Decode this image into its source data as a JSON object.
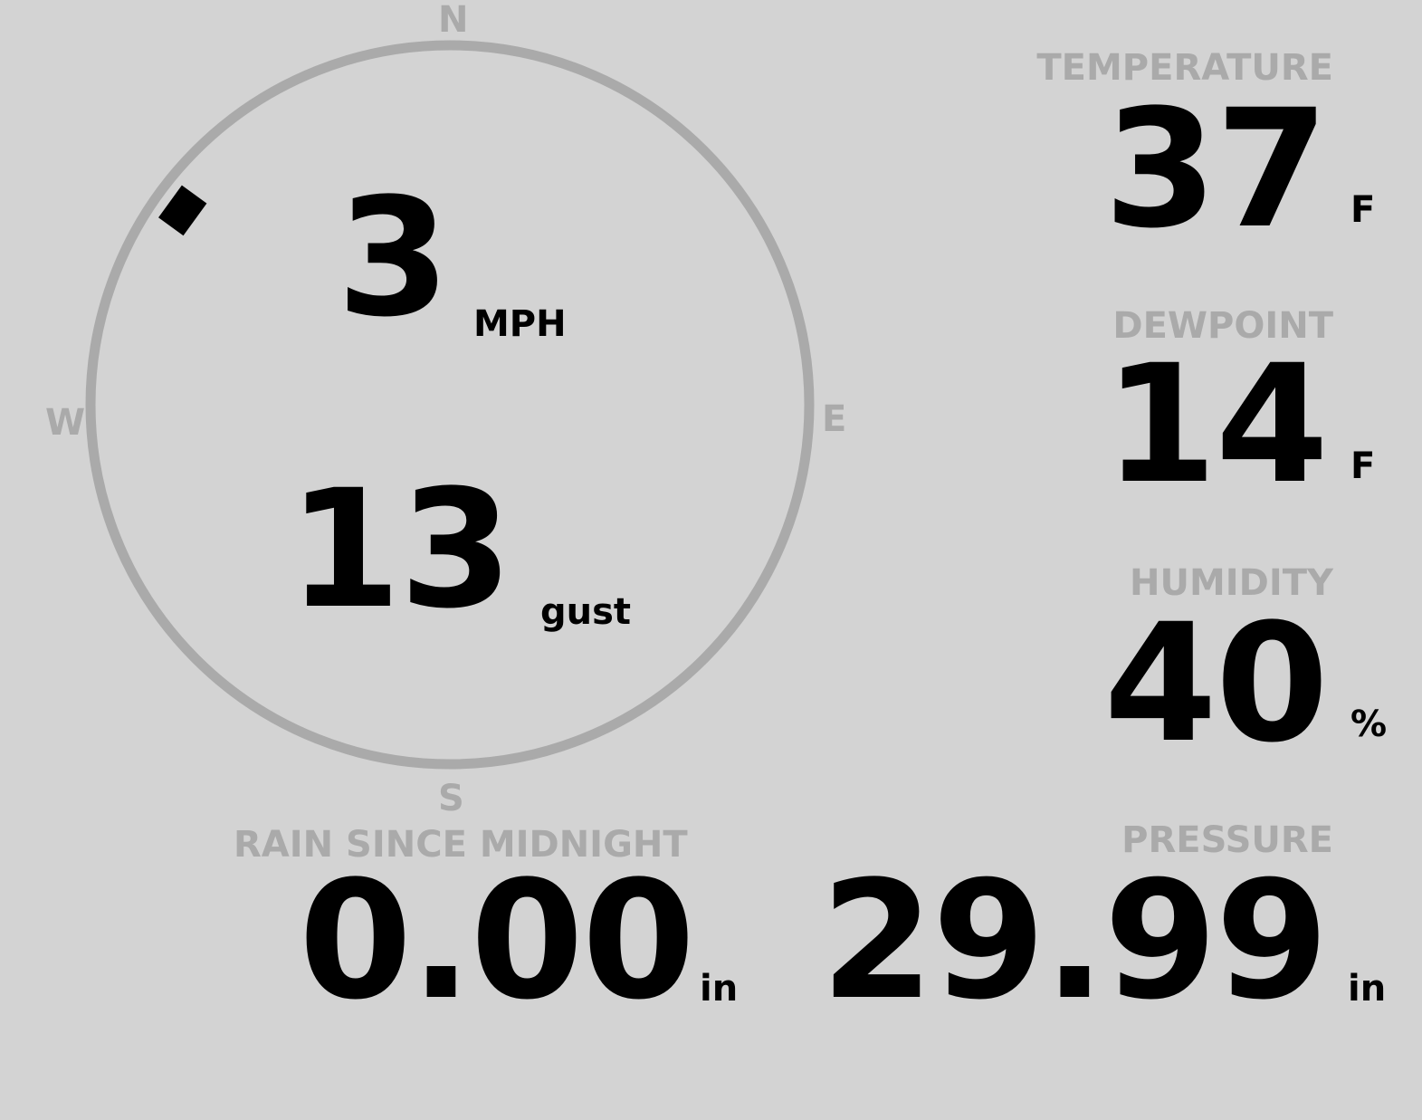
{
  "wind": {
    "speed": "3",
    "speed_unit": "MPH",
    "gust": "13",
    "gust_unit": "gust",
    "direction_degrees": 306,
    "compass": {
      "n": "N",
      "e": "E",
      "s": "S",
      "w": "W"
    }
  },
  "temperature": {
    "label": "TEMPERATURE",
    "value": "37",
    "unit": "F"
  },
  "dewpoint": {
    "label": "DEWPOINT",
    "value": "14",
    "unit": "F"
  },
  "humidity": {
    "label": "HUMIDITY",
    "value": "40",
    "unit": "%"
  },
  "rain": {
    "label": "RAIN SINCE MIDNIGHT",
    "value": "0.00",
    "unit": "in"
  },
  "pressure": {
    "label": "PRESSURE",
    "value": "29.99",
    "unit": "in"
  },
  "colors": {
    "background": "#d3d3d3",
    "label": "#aaaaaa",
    "value": "#000000",
    "ring": "#aaaaaa"
  }
}
